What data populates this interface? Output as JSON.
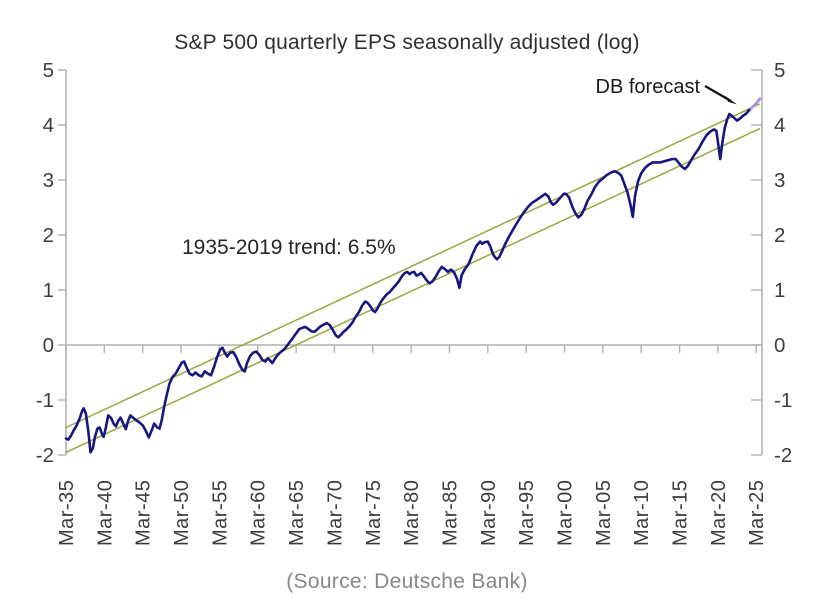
{
  "figure": {
    "source": "(Source: Deutsche Bank)",
    "annotations": {
      "trend_label": "1935-2019 trend: 6.5%",
      "forecast_label": "DB forecast"
    }
  },
  "colors": {
    "axis": "#b2b2b2",
    "tick_label": "#3d3d3d",
    "arrow": "#111111"
  },
  "chart_data": {
    "type": "line",
    "title": "S&P 500 quarterly EPS seasonally adjusted (log)",
    "xlabel": "",
    "ylabel": "",
    "ylim": [
      -2,
      5
    ],
    "xlim": [
      1935,
      2025.75
    ],
    "grid": "horizontal zero line only",
    "legend_position": "none",
    "y_ticks": [
      5,
      4,
      3,
      2,
      1,
      0,
      -1,
      -2
    ],
    "x_tick_years": [
      1935,
      1940,
      1945,
      1950,
      1955,
      1960,
      1965,
      1970,
      1975,
      1980,
      1985,
      1990,
      1995,
      2000,
      2005,
      2010,
      2015,
      2020,
      2025
    ],
    "x_tick_labels": [
      "Mar-35",
      "Mar-40",
      "Mar-45",
      "Mar-50",
      "Mar-55",
      "Mar-60",
      "Mar-65",
      "Mar-70",
      "Mar-75",
      "Mar-80",
      "Mar-85",
      "Mar-90",
      "Mar-95",
      "Mar-00",
      "Mar-05",
      "Mar-10",
      "Mar-15",
      "Mar-20",
      "Mar-25"
    ],
    "series": [
      {
        "id": "eps",
        "name": "S&P 500 quarterly EPS, seasonally adjusted (natural log)",
        "color": "#171780",
        "lw": 2.6,
        "points": [
          [
            1935.0,
            -1.7
          ],
          [
            1935.3,
            -1.72
          ],
          [
            1935.6,
            -1.66
          ],
          [
            1936.0,
            -1.55
          ],
          [
            1936.4,
            -1.46
          ],
          [
            1936.8,
            -1.33
          ],
          [
            1937.1,
            -1.2
          ],
          [
            1937.3,
            -1.15
          ],
          [
            1937.6,
            -1.25
          ],
          [
            1937.9,
            -1.55
          ],
          [
            1938.2,
            -1.95
          ],
          [
            1938.5,
            -1.88
          ],
          [
            1938.8,
            -1.66
          ],
          [
            1939.1,
            -1.52
          ],
          [
            1939.4,
            -1.5
          ],
          [
            1939.7,
            -1.62
          ],
          [
            1939.9,
            -1.67
          ],
          [
            1940.2,
            -1.5
          ],
          [
            1940.5,
            -1.28
          ],
          [
            1940.9,
            -1.33
          ],
          [
            1941.2,
            -1.43
          ],
          [
            1941.5,
            -1.48
          ],
          [
            1941.8,
            -1.38
          ],
          [
            1942.1,
            -1.32
          ],
          [
            1942.5,
            -1.44
          ],
          [
            1942.8,
            -1.53
          ],
          [
            1943.1,
            -1.38
          ],
          [
            1943.4,
            -1.28
          ],
          [
            1943.8,
            -1.33
          ],
          [
            1944.2,
            -1.37
          ],
          [
            1944.6,
            -1.41
          ],
          [
            1945.0,
            -1.46
          ],
          [
            1945.4,
            -1.56
          ],
          [
            1945.8,
            -1.68
          ],
          [
            1946.1,
            -1.58
          ],
          [
            1946.5,
            -1.43
          ],
          [
            1946.9,
            -1.5
          ],
          [
            1947.2,
            -1.52
          ],
          [
            1947.5,
            -1.35
          ],
          [
            1947.8,
            -1.12
          ],
          [
            1948.1,
            -0.93
          ],
          [
            1948.5,
            -0.7
          ],
          [
            1948.9,
            -0.58
          ],
          [
            1949.3,
            -0.52
          ],
          [
            1949.7,
            -0.42
          ],
          [
            1950.1,
            -0.32
          ],
          [
            1950.4,
            -0.3
          ],
          [
            1950.7,
            -0.4
          ],
          [
            1951.1,
            -0.52
          ],
          [
            1951.5,
            -0.55
          ],
          [
            1951.9,
            -0.5
          ],
          [
            1952.3,
            -0.55
          ],
          [
            1952.7,
            -0.57
          ],
          [
            1953.1,
            -0.48
          ],
          [
            1953.5,
            -0.52
          ],
          [
            1953.9,
            -0.55
          ],
          [
            1954.3,
            -0.4
          ],
          [
            1954.7,
            -0.22
          ],
          [
            1955.1,
            -0.08
          ],
          [
            1955.4,
            -0.05
          ],
          [
            1955.7,
            -0.14
          ],
          [
            1956.0,
            -0.21
          ],
          [
            1956.4,
            -0.14
          ],
          [
            1956.8,
            -0.13
          ],
          [
            1957.2,
            -0.22
          ],
          [
            1957.6,
            -0.35
          ],
          [
            1958.0,
            -0.45
          ],
          [
            1958.3,
            -0.48
          ],
          [
            1958.6,
            -0.33
          ],
          [
            1959.0,
            -0.2
          ],
          [
            1959.4,
            -0.14
          ],
          [
            1959.8,
            -0.12
          ],
          [
            1960.2,
            -0.18
          ],
          [
            1960.6,
            -0.27
          ],
          [
            1961.0,
            -0.3
          ],
          [
            1961.3,
            -0.24
          ],
          [
            1961.6,
            -0.28
          ],
          [
            1961.9,
            -0.33
          ],
          [
            1962.2,
            -0.26
          ],
          [
            1962.6,
            -0.18
          ],
          [
            1963.0,
            -0.13
          ],
          [
            1963.5,
            -0.07
          ],
          [
            1964.0,
            0.02
          ],
          [
            1964.5,
            0.11
          ],
          [
            1965.0,
            0.21
          ],
          [
            1965.4,
            0.29
          ],
          [
            1965.8,
            0.31
          ],
          [
            1966.2,
            0.33
          ],
          [
            1966.6,
            0.29
          ],
          [
            1967.0,
            0.25
          ],
          [
            1967.4,
            0.24
          ],
          [
            1967.8,
            0.29
          ],
          [
            1968.2,
            0.34
          ],
          [
            1968.6,
            0.37
          ],
          [
            1969.0,
            0.4
          ],
          [
            1969.4,
            0.36
          ],
          [
            1969.8,
            0.27
          ],
          [
            1970.2,
            0.17
          ],
          [
            1970.5,
            0.14
          ],
          [
            1970.8,
            0.18
          ],
          [
            1971.2,
            0.24
          ],
          [
            1971.6,
            0.29
          ],
          [
            1972.0,
            0.35
          ],
          [
            1972.4,
            0.42
          ],
          [
            1972.8,
            0.52
          ],
          [
            1973.2,
            0.6
          ],
          [
            1973.6,
            0.71
          ],
          [
            1974.0,
            0.79
          ],
          [
            1974.3,
            0.77
          ],
          [
            1974.7,
            0.7
          ],
          [
            1975.0,
            0.63
          ],
          [
            1975.3,
            0.6
          ],
          [
            1975.6,
            0.66
          ],
          [
            1976.0,
            0.77
          ],
          [
            1976.4,
            0.85
          ],
          [
            1976.8,
            0.92
          ],
          [
            1977.2,
            0.96
          ],
          [
            1977.6,
            1.03
          ],
          [
            1978.0,
            1.09
          ],
          [
            1978.4,
            1.16
          ],
          [
            1978.8,
            1.25
          ],
          [
            1979.2,
            1.31
          ],
          [
            1979.5,
            1.33
          ],
          [
            1979.8,
            1.29
          ],
          [
            1980.1,
            1.32
          ],
          [
            1980.4,
            1.33
          ],
          [
            1980.7,
            1.26
          ],
          [
            1981.0,
            1.28
          ],
          [
            1981.3,
            1.31
          ],
          [
            1981.6,
            1.26
          ],
          [
            1982.0,
            1.18
          ],
          [
            1982.4,
            1.12
          ],
          [
            1982.8,
            1.16
          ],
          [
            1983.2,
            1.24
          ],
          [
            1983.6,
            1.34
          ],
          [
            1984.0,
            1.42
          ],
          [
            1984.4,
            1.38
          ],
          [
            1984.8,
            1.33
          ],
          [
            1985.2,
            1.37
          ],
          [
            1985.6,
            1.32
          ],
          [
            1986.0,
            1.2
          ],
          [
            1986.3,
            1.04
          ],
          [
            1986.6,
            1.27
          ],
          [
            1987.0,
            1.38
          ],
          [
            1987.5,
            1.47
          ],
          [
            1988.0,
            1.65
          ],
          [
            1988.5,
            1.8
          ],
          [
            1989.0,
            1.88
          ],
          [
            1989.3,
            1.84
          ],
          [
            1989.6,
            1.87
          ],
          [
            1990.0,
            1.88
          ],
          [
            1990.3,
            1.8
          ],
          [
            1990.6,
            1.68
          ],
          [
            1990.9,
            1.6
          ],
          [
            1991.2,
            1.56
          ],
          [
            1991.5,
            1.6
          ],
          [
            1991.9,
            1.72
          ],
          [
            1992.3,
            1.85
          ],
          [
            1992.8,
            1.98
          ],
          [
            1993.3,
            2.1
          ],
          [
            1993.8,
            2.22
          ],
          [
            1994.3,
            2.33
          ],
          [
            1994.8,
            2.43
          ],
          [
            1995.3,
            2.52
          ],
          [
            1995.8,
            2.59
          ],
          [
            1996.3,
            2.63
          ],
          [
            1996.8,
            2.68
          ],
          [
            1997.2,
            2.72
          ],
          [
            1997.5,
            2.75
          ],
          [
            1997.9,
            2.7
          ],
          [
            1998.2,
            2.6
          ],
          [
            1998.5,
            2.55
          ],
          [
            1998.9,
            2.59
          ],
          [
            1999.4,
            2.67
          ],
          [
            1999.9,
            2.75
          ],
          [
            2000.2,
            2.75
          ],
          [
            2000.6,
            2.68
          ],
          [
            2001.0,
            2.52
          ],
          [
            2001.4,
            2.4
          ],
          [
            2001.8,
            2.32
          ],
          [
            2002.2,
            2.37
          ],
          [
            2002.6,
            2.48
          ],
          [
            2003.0,
            2.62
          ],
          [
            2003.5,
            2.74
          ],
          [
            2004.0,
            2.88
          ],
          [
            2004.5,
            2.97
          ],
          [
            2005.0,
            3.03
          ],
          [
            2005.5,
            3.09
          ],
          [
            2006.0,
            3.13
          ],
          [
            2006.5,
            3.16
          ],
          [
            2007.0,
            3.13
          ],
          [
            2007.4,
            3.08
          ],
          [
            2007.8,
            2.93
          ],
          [
            2008.2,
            2.78
          ],
          [
            2008.6,
            2.55
          ],
          [
            2008.9,
            2.33
          ],
          [
            2009.2,
            2.72
          ],
          [
            2009.6,
            2.98
          ],
          [
            2010.0,
            3.12
          ],
          [
            2010.5,
            3.22
          ],
          [
            2011.0,
            3.28
          ],
          [
            2011.5,
            3.32
          ],
          [
            2012.0,
            3.32
          ],
          [
            2012.5,
            3.32
          ],
          [
            2013.0,
            3.34
          ],
          [
            2013.5,
            3.36
          ],
          [
            2014.0,
            3.38
          ],
          [
            2014.5,
            3.38
          ],
          [
            2014.9,
            3.31
          ],
          [
            2015.3,
            3.24
          ],
          [
            2015.7,
            3.2
          ],
          [
            2016.1,
            3.26
          ],
          [
            2016.5,
            3.36
          ],
          [
            2017.0,
            3.47
          ],
          [
            2017.5,
            3.57
          ],
          [
            2018.0,
            3.7
          ],
          [
            2018.5,
            3.81
          ],
          [
            2019.0,
            3.88
          ],
          [
            2019.5,
            3.92
          ],
          [
            2019.8,
            3.89
          ],
          [
            2020.0,
            3.7
          ],
          [
            2020.3,
            3.38
          ],
          [
            2020.6,
            3.7
          ],
          [
            2020.9,
            3.95
          ],
          [
            2021.2,
            4.1
          ],
          [
            2021.5,
            4.2
          ],
          [
            2021.8,
            4.17
          ],
          [
            2022.1,
            4.13
          ],
          [
            2022.5,
            4.08
          ],
          [
            2022.9,
            4.12
          ],
          [
            2023.3,
            4.17
          ],
          [
            2023.7,
            4.21
          ],
          [
            2024.0,
            4.26
          ],
          [
            2024.3,
            4.3
          ]
        ]
      },
      {
        "id": "forecast",
        "name": "DB forecast",
        "color": "#b08fe6",
        "lw": 2.8,
        "points": [
          [
            2024.3,
            4.3
          ],
          [
            2024.6,
            4.34
          ],
          [
            2024.9,
            4.38
          ],
          [
            2025.2,
            4.43
          ],
          [
            2025.5,
            4.48
          ]
        ]
      },
      {
        "id": "trend_upper",
        "name": "1935-2019 trend channel upper (6.5%/yr)",
        "color": "#97a83e",
        "lw": 1.5,
        "points": [
          [
            1935,
            -1.5
          ],
          [
            2025.4,
            4.38
          ]
        ]
      },
      {
        "id": "trend_lower",
        "name": "1935-2019 trend channel lower (6.5%/yr)",
        "color": "#97a83e",
        "lw": 1.5,
        "points": [
          [
            1935,
            -1.95
          ],
          [
            2025.4,
            3.93
          ]
        ]
      }
    ]
  }
}
